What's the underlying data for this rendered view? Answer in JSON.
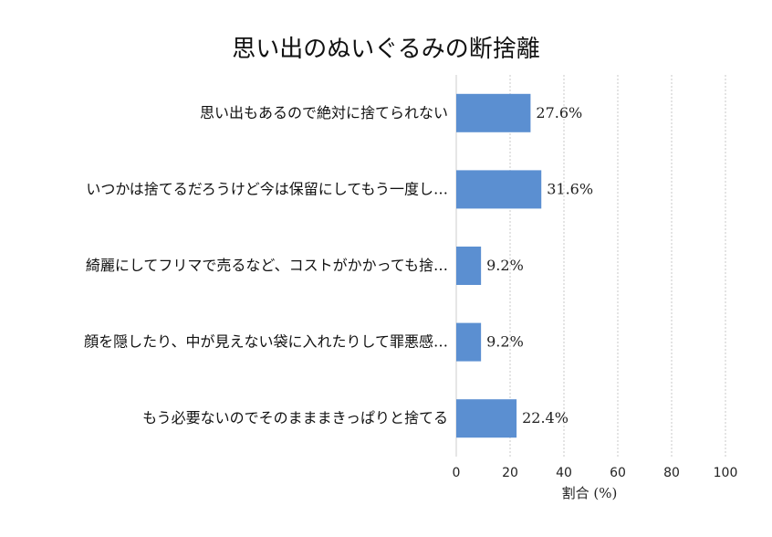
{
  "chart_data": {
    "type": "bar",
    "orientation": "horizontal",
    "title": "思い出のぬいぐるみの断捨離",
    "xlabel": "割合 (%)",
    "ylabel": "",
    "xlim": [
      0,
      100
    ],
    "xticks": [
      0,
      20,
      40,
      60,
      80,
      100
    ],
    "grid": true,
    "legend": "none",
    "bar_color": "#5b8fd1",
    "categories": [
      "思い出もあるので絶対に捨てられない",
      "いつかは捨てるだろうけど今は保留にしてもう一度し…",
      "綺麗にしてフリマで売るなど、コストがかかっても捨…",
      "顔を隠したり、中が見えない袋に入れたりして罪悪感…",
      "もう必要ないのでそのまままきっぱりと捨てる"
    ],
    "values": [
      27.6,
      31.6,
      9.2,
      9.2,
      22.4
    ],
    "value_labels": [
      "27.6%",
      "31.6%",
      "9.2%",
      "9.2%",
      "22.4%"
    ]
  }
}
